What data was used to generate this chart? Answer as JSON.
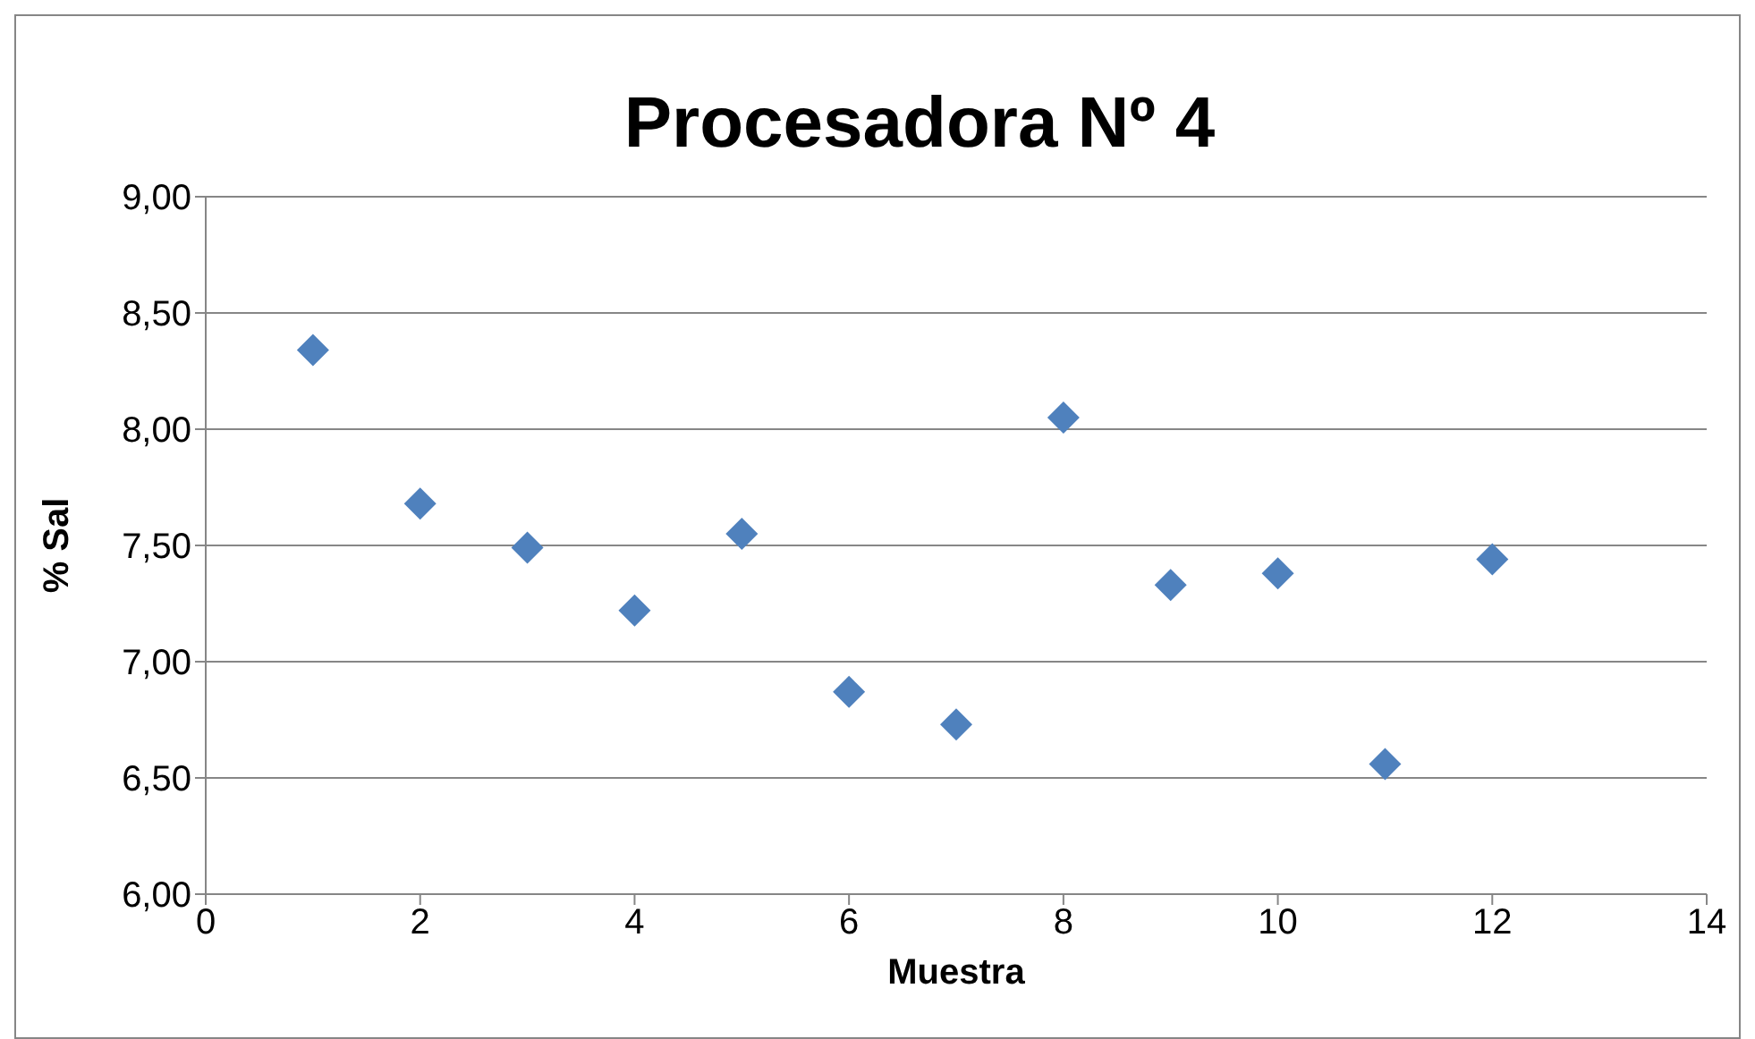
{
  "chart_data": {
    "type": "scatter",
    "title": "Procesadora Nº 4",
    "xlabel": "Muestra",
    "ylabel": "% Sal",
    "x": [
      1,
      2,
      3,
      4,
      5,
      6,
      7,
      8,
      9,
      10,
      11,
      12
    ],
    "series": [
      {
        "color": "#4f81bd",
        "values": [
          8.34,
          7.68,
          7.49,
          7.22,
          7.55,
          6.87,
          6.73,
          8.05,
          7.33,
          7.38,
          6.56,
          7.44
        ]
      }
    ],
    "xlim": [
      0,
      14
    ],
    "xticks": [
      0,
      2,
      4,
      6,
      8,
      10,
      12,
      14
    ],
    "ylim": [
      6,
      9
    ],
    "yticks": [
      {
        "value": 6,
        "label": "6,00"
      },
      {
        "value": 6.5,
        "label": "6,50"
      },
      {
        "value": 7,
        "label": "7,00"
      },
      {
        "value": 7.5,
        "label": "7,50"
      },
      {
        "value": 8,
        "label": "8,00"
      },
      {
        "value": 8.5,
        "label": "8,50"
      },
      {
        "value": 9,
        "label": "9,00"
      }
    ],
    "grid": "y",
    "marker": "diamond"
  }
}
